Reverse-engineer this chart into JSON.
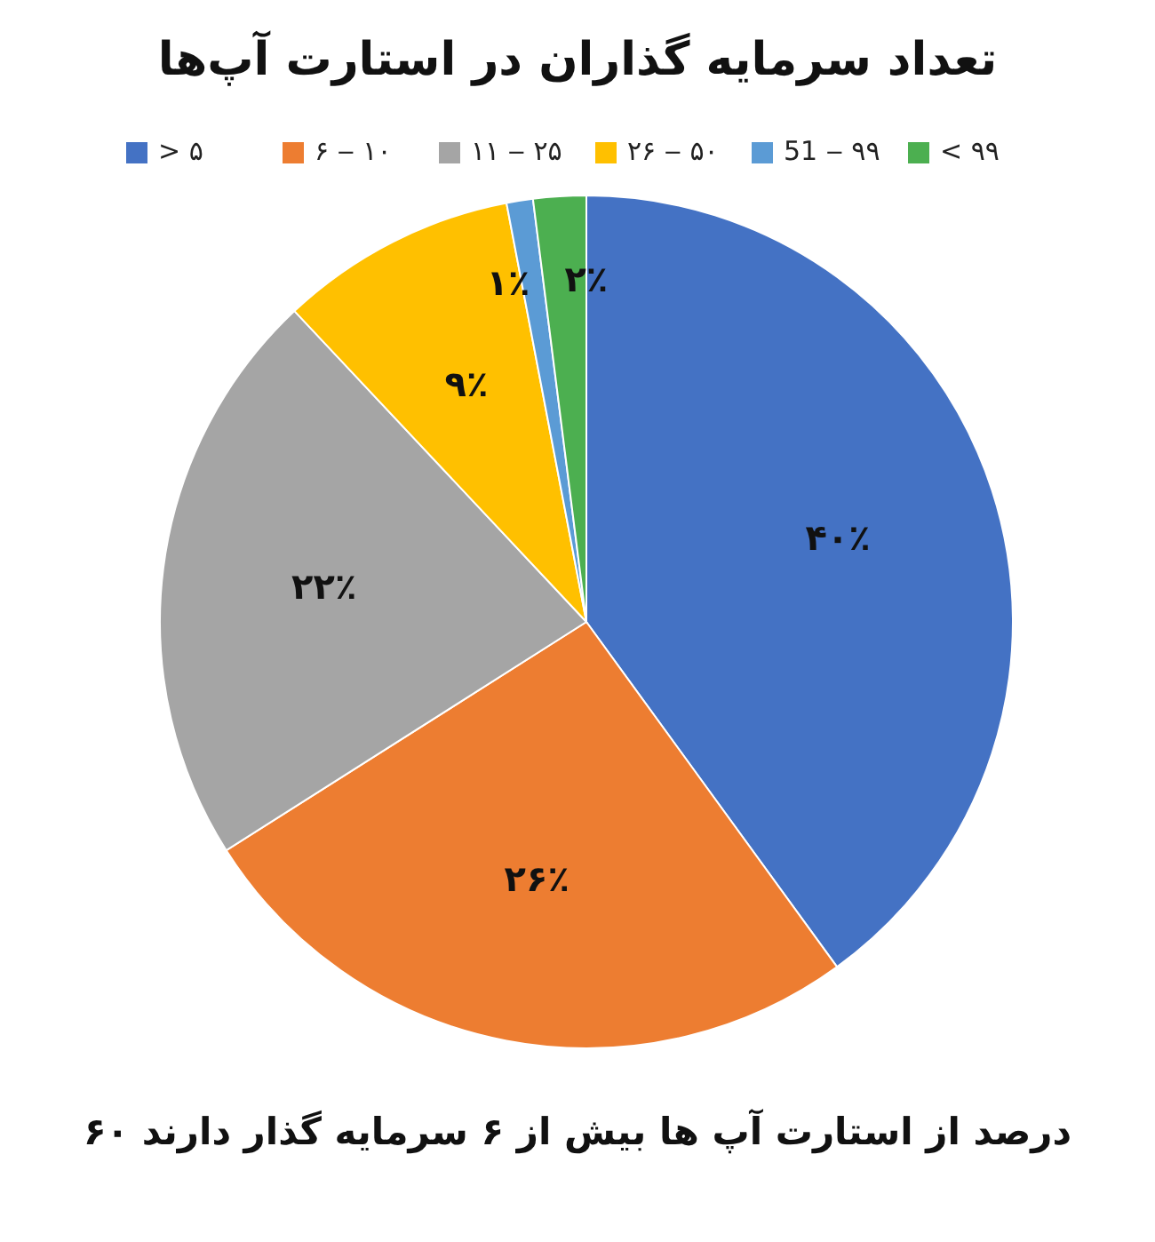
{
  "chart_data": {
    "type": "pie",
    "title": "تعداد سرمایه گذاران در استارت آپ‌ها",
    "categories": [
      "> ۵",
      "۶ ‒ ۱۰",
      "۱۱ ‒ ۲۵",
      "۲۶ ‒ ۵۰",
      "51 ‒ ۹۹",
      "< ۹۹"
    ],
    "values": [
      40,
      26,
      22,
      9,
      1,
      2
    ],
    "colors": [
      "#4472c4",
      "#ed7d31",
      "#a5a5a5",
      "#ffc000",
      "#5b9bd5",
      "#4caf50"
    ],
    "value_labels": [
      "۴۰٪",
      "۲۶٪",
      "۲۲٪",
      "۹٪",
      "۱٪",
      "۲٪"
    ],
    "legend": "top",
    "annotations": [
      "۶۰ درصد از استارت آپ ها بیش از ۶ سرمایه گذار دارند"
    ]
  }
}
